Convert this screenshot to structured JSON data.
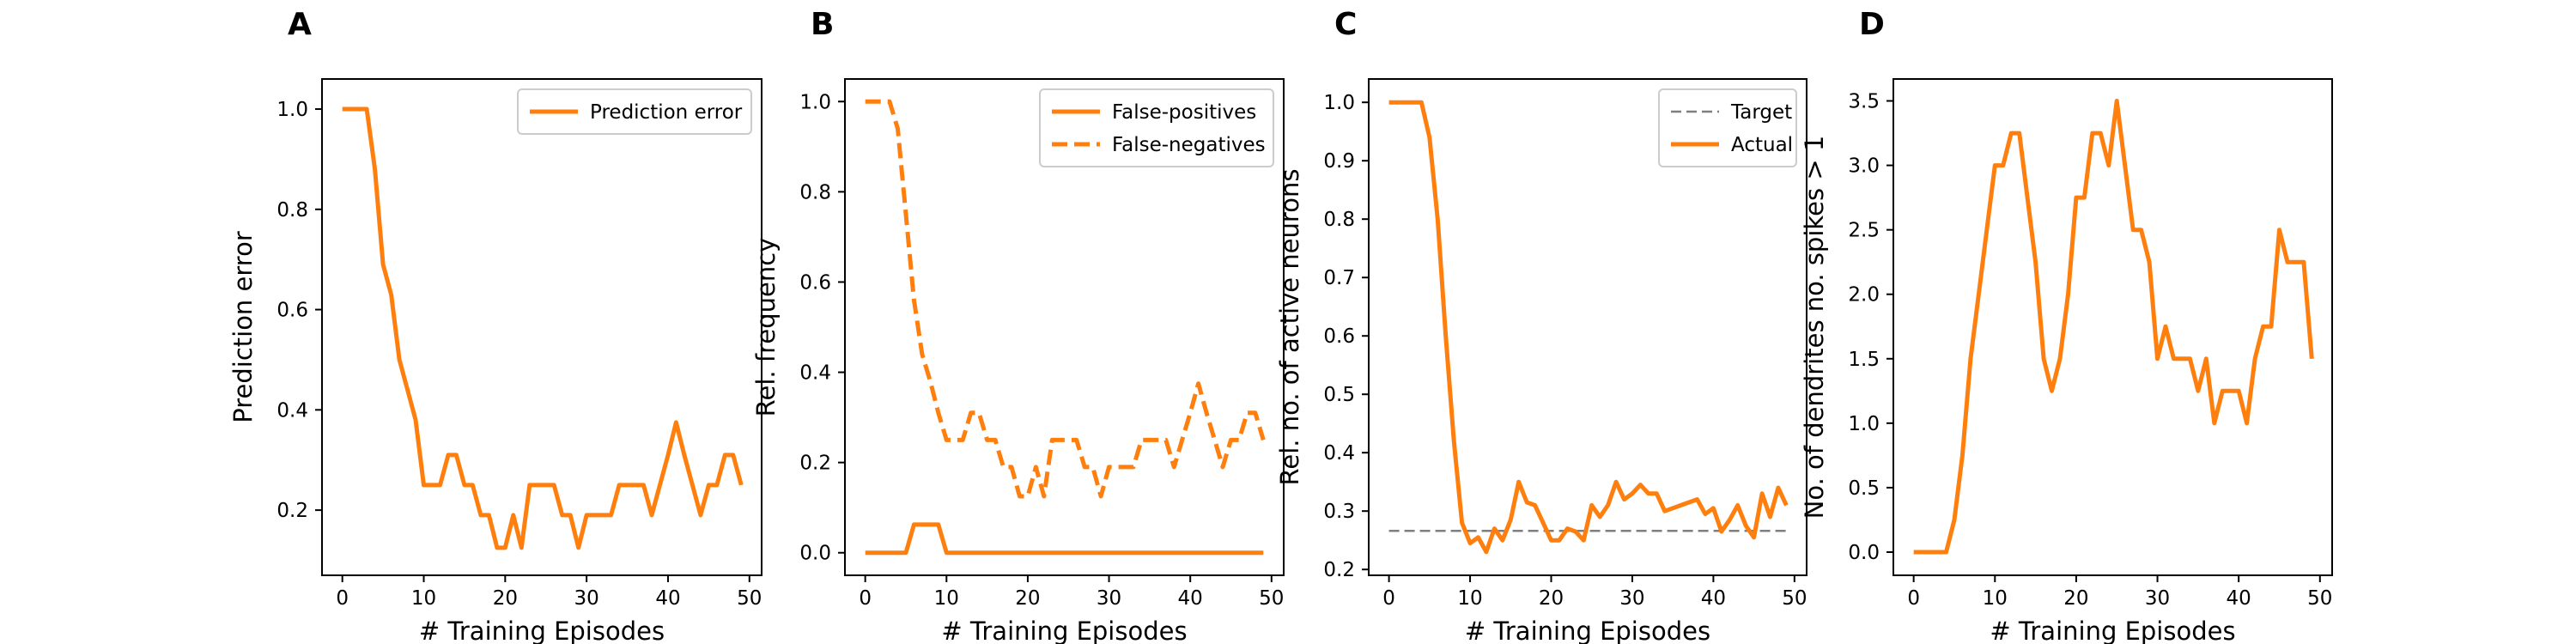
{
  "chart_data": [
    {
      "panel": "A",
      "type": "line",
      "xlabel": "# Training Episodes",
      "ylabel": "Prediction error",
      "xlim": [
        -2.5,
        51.5
      ],
      "ylim": [
        0.07,
        1.06
      ],
      "xticks": [
        0,
        10,
        20,
        30,
        40,
        50
      ],
      "yticks": [
        0.2,
        0.4,
        0.6,
        0.8,
        1.0
      ],
      "ytick_decimals": 1,
      "grid": false,
      "legend": "top-right",
      "x": [
        0,
        1,
        2,
        3,
        4,
        5,
        6,
        7,
        8,
        9,
        10,
        11,
        12,
        13,
        14,
        15,
        16,
        17,
        18,
        19,
        20,
        21,
        22,
        23,
        24,
        25,
        26,
        27,
        28,
        29,
        30,
        31,
        32,
        33,
        34,
        35,
        36,
        37,
        38,
        39,
        40,
        41,
        42,
        43,
        44,
        45,
        46,
        47,
        48,
        49
      ],
      "series": [
        {
          "name": "Prediction error",
          "color": "#ff7f0e",
          "dash": "solid",
          "values": [
            1.0,
            1.0,
            1.0,
            1.0,
            0.88,
            0.69,
            0.63,
            0.5,
            0.44,
            0.38,
            0.25,
            0.25,
            0.25,
            0.31,
            0.31,
            0.25,
            0.25,
            0.19,
            0.19,
            0.125,
            0.125,
            0.19,
            0.125,
            0.25,
            0.25,
            0.25,
            0.25,
            0.19,
            0.19,
            0.125,
            0.19,
            0.19,
            0.19,
            0.19,
            0.25,
            0.25,
            0.25,
            0.25,
            0.19,
            0.25,
            0.31,
            0.375,
            0.31,
            0.25,
            0.19,
            0.25,
            0.25,
            0.31,
            0.31,
            0.25
          ]
        }
      ]
    },
    {
      "panel": "B",
      "type": "line",
      "xlabel": "# Training Episodes",
      "ylabel": "Rel. frequency",
      "xlim": [
        -2.5,
        51.5
      ],
      "ylim": [
        -0.05,
        1.05
      ],
      "xticks": [
        0,
        10,
        20,
        30,
        40,
        50
      ],
      "yticks": [
        0.0,
        0.2,
        0.4,
        0.6,
        0.8,
        1.0
      ],
      "ytick_decimals": 1,
      "grid": false,
      "legend": "top-right",
      "x": [
        0,
        1,
        2,
        3,
        4,
        5,
        6,
        7,
        8,
        9,
        10,
        11,
        12,
        13,
        14,
        15,
        16,
        17,
        18,
        19,
        20,
        21,
        22,
        23,
        24,
        25,
        26,
        27,
        28,
        29,
        30,
        31,
        32,
        33,
        34,
        35,
        36,
        37,
        38,
        39,
        40,
        41,
        42,
        43,
        44,
        45,
        46,
        47,
        48,
        49
      ],
      "series": [
        {
          "name": "False-positives",
          "color": "#ff7f0e",
          "dash": "solid",
          "values": [
            0,
            0,
            0,
            0,
            0,
            0,
            0.0625,
            0.0625,
            0.0625,
            0.0625,
            0,
            0,
            0,
            0,
            0,
            0,
            0,
            0,
            0,
            0,
            0,
            0,
            0,
            0,
            0,
            0,
            0,
            0,
            0,
            0,
            0,
            0,
            0,
            0,
            0,
            0,
            0,
            0,
            0,
            0,
            0,
            0,
            0,
            0,
            0,
            0,
            0,
            0,
            0,
            0
          ]
        },
        {
          "name": "False-negatives",
          "color": "#ff7f0e",
          "dash": "dashed",
          "values": [
            1.0,
            1.0,
            1.0,
            1.0,
            0.94,
            0.75,
            0.56,
            0.44,
            0.38,
            0.31,
            0.25,
            0.25,
            0.25,
            0.31,
            0.31,
            0.25,
            0.25,
            0.19,
            0.19,
            0.125,
            0.125,
            0.19,
            0.125,
            0.25,
            0.25,
            0.25,
            0.25,
            0.19,
            0.19,
            0.125,
            0.19,
            0.19,
            0.19,
            0.19,
            0.25,
            0.25,
            0.25,
            0.25,
            0.19,
            0.25,
            0.31,
            0.375,
            0.31,
            0.25,
            0.19,
            0.25,
            0.25,
            0.31,
            0.31,
            0.25
          ]
        }
      ]
    },
    {
      "panel": "C",
      "type": "line",
      "xlabel": "# Training Episodes",
      "ylabel": "Rel. no. of active neurons",
      "xlim": [
        -2.5,
        51.5
      ],
      "ylim": [
        0.19,
        1.04
      ],
      "xticks": [
        0,
        10,
        20,
        30,
        40,
        50
      ],
      "yticks": [
        0.2,
        0.3,
        0.4,
        0.5,
        0.6,
        0.7,
        0.8,
        0.9,
        1.0
      ],
      "ytick_decimals": 1,
      "grid": false,
      "legend": "top-right",
      "x": [
        0,
        1,
        2,
        3,
        4,
        5,
        6,
        7,
        8,
        9,
        10,
        11,
        12,
        13,
        14,
        15,
        16,
        17,
        18,
        19,
        20,
        21,
        22,
        23,
        24,
        25,
        26,
        27,
        28,
        29,
        30,
        31,
        32,
        33,
        34,
        35,
        36,
        37,
        38,
        39,
        40,
        41,
        42,
        43,
        44,
        45,
        46,
        47,
        48,
        49
      ],
      "series": [
        {
          "name": "Target",
          "color": "#7f7f7f",
          "dash": "dashed",
          "values": [
            0.266,
            0.266,
            0.266,
            0.266,
            0.266,
            0.266,
            0.266,
            0.266,
            0.266,
            0.266,
            0.266,
            0.266,
            0.266,
            0.266,
            0.266,
            0.266,
            0.266,
            0.266,
            0.266,
            0.266,
            0.266,
            0.266,
            0.266,
            0.266,
            0.266,
            0.266,
            0.266,
            0.266,
            0.266,
            0.266,
            0.266,
            0.266,
            0.266,
            0.266,
            0.266,
            0.266,
            0.266,
            0.266,
            0.266,
            0.266,
            0.266,
            0.266,
            0.266,
            0.266,
            0.266,
            0.266,
            0.266,
            0.266,
            0.266,
            0.266
          ]
        },
        {
          "name": "Actual",
          "color": "#ff7f0e",
          "dash": "solid",
          "values": [
            1.0,
            1.0,
            1.0,
            1.0,
            1.0,
            0.94,
            0.8,
            0.6,
            0.42,
            0.28,
            0.245,
            0.255,
            0.23,
            0.27,
            0.25,
            0.285,
            0.35,
            0.315,
            0.31,
            0.28,
            0.25,
            0.25,
            0.27,
            0.265,
            0.25,
            0.31,
            0.29,
            0.31,
            0.35,
            0.32,
            0.33,
            0.345,
            0.33,
            0.33,
            0.3,
            0.305,
            0.31,
            0.315,
            0.32,
            0.295,
            0.305,
            0.265,
            0.285,
            0.31,
            0.275,
            0.255,
            0.33,
            0.29,
            0.34,
            0.31
          ]
        }
      ]
    },
    {
      "panel": "D",
      "type": "line",
      "xlabel": "# Training Episodes",
      "ylabel": "No. of dendrites no. spikes > 1",
      "xlim": [
        -2.5,
        51.5
      ],
      "ylim": [
        -0.18,
        3.67
      ],
      "xticks": [
        0,
        10,
        20,
        30,
        40,
        50
      ],
      "yticks": [
        0.0,
        0.5,
        1.0,
        1.5,
        2.0,
        2.5,
        3.0,
        3.5
      ],
      "ytick_decimals": 1,
      "grid": false,
      "legend": "none",
      "x": [
        0,
        1,
        2,
        3,
        4,
        5,
        6,
        7,
        8,
        9,
        10,
        11,
        12,
        13,
        14,
        15,
        16,
        17,
        18,
        19,
        20,
        21,
        22,
        23,
        24,
        25,
        26,
        27,
        28,
        29,
        30,
        31,
        32,
        33,
        34,
        35,
        36,
        37,
        38,
        39,
        40,
        41,
        42,
        43,
        44,
        45,
        46,
        47,
        48,
        49
      ],
      "series": [
        {
          "name": "",
          "color": "#ff7f0e",
          "dash": "solid",
          "values": [
            0,
            0,
            0,
            0,
            0,
            0.25,
            0.75,
            1.5,
            2.0,
            2.5,
            3.0,
            3.0,
            3.25,
            3.25,
            2.75,
            2.25,
            1.5,
            1.25,
            1.5,
            2.0,
            2.75,
            2.75,
            3.25,
            3.25,
            3.0,
            3.5,
            3.0,
            2.5,
            2.5,
            2.25,
            1.5,
            1.75,
            1.5,
            1.5,
            1.5,
            1.25,
            1.5,
            1.0,
            1.25,
            1.25,
            1.25,
            1.0,
            1.5,
            1.75,
            1.75,
            2.5,
            2.25,
            2.25,
            2.25,
            1.5
          ]
        }
      ]
    }
  ]
}
